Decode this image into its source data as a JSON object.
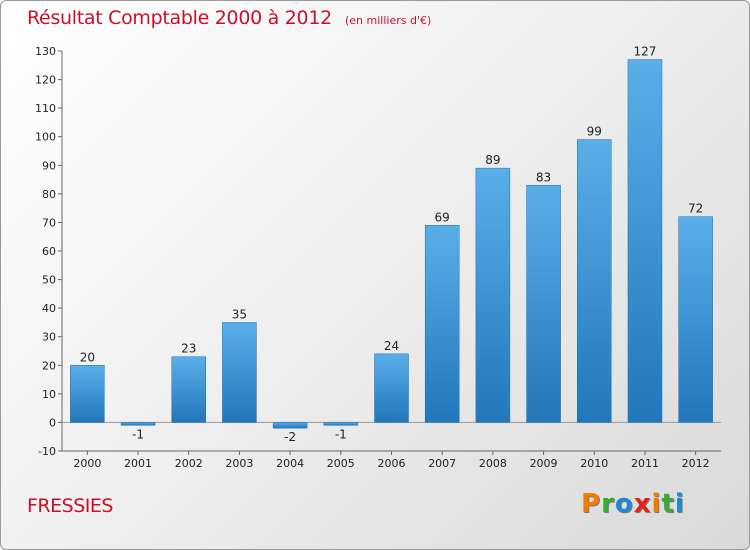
{
  "chart_data": {
    "type": "bar",
    "title": "Résultat Comptable 2000 à 2012",
    "subtitle": "(en milliers d'€)",
    "categories": [
      "2000",
      "2001",
      "2002",
      "2003",
      "2004",
      "2005",
      "2006",
      "2007",
      "2008",
      "2009",
      "2010",
      "2011",
      "2012"
    ],
    "values": [
      20,
      -1,
      23,
      35,
      -2,
      -1,
      24,
      69,
      89,
      83,
      99,
      127,
      72
    ],
    "value_labels": [
      "20",
      "-1",
      "23",
      "35",
      "-2",
      "-1",
      "24",
      "69",
      "89",
      "83",
      "99",
      "127",
      "72"
    ],
    "ylim": [
      -10,
      130
    ],
    "yticks": [
      -10,
      0,
      10,
      20,
      30,
      40,
      50,
      60,
      70,
      80,
      90,
      100,
      110,
      120,
      130
    ],
    "grid": false,
    "bar_color_top": "#5aaee8",
    "bar_color_bottom": "#2277bb"
  },
  "footer": {
    "commune": "FRESSIES",
    "brand_letters": [
      {
        "ch": "P",
        "color": "#f07d00"
      },
      {
        "ch": "r",
        "color": "#3aa935"
      },
      {
        "ch": "o",
        "color": "#1e88d2"
      },
      {
        "ch": "x",
        "color": "#e2231a"
      },
      {
        "ch": "i",
        "color": "#f07d00"
      },
      {
        "ch": "t",
        "color": "#3aa935"
      },
      {
        "ch": "i",
        "color": "#1e88d2"
      }
    ]
  }
}
